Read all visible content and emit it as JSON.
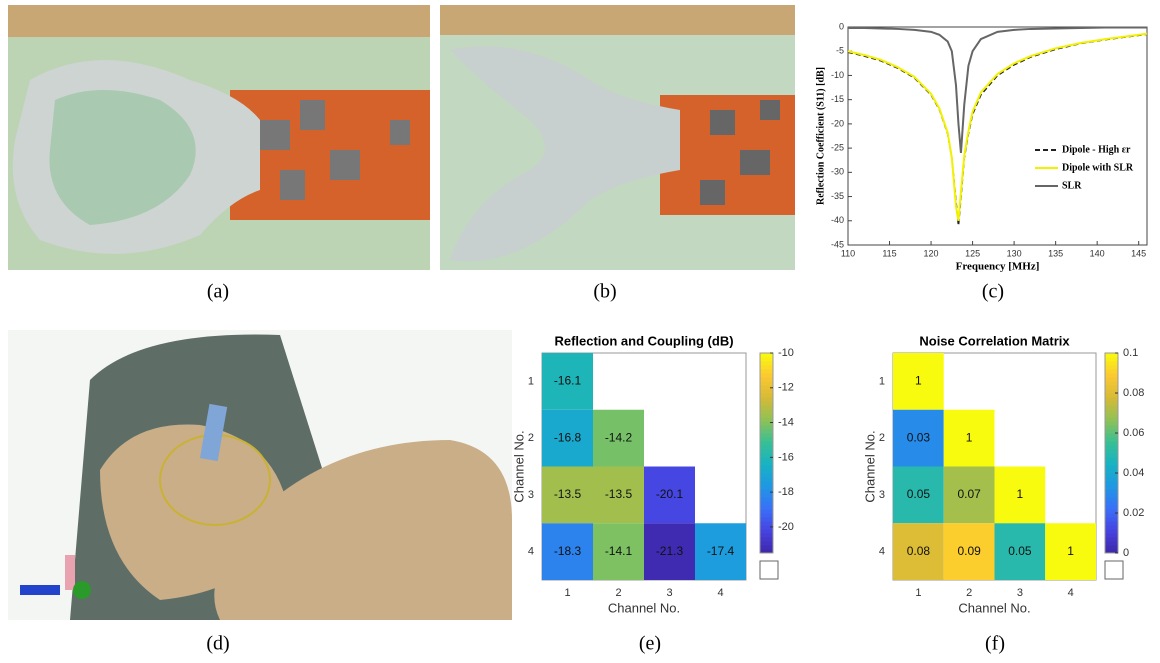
{
  "captions": [
    "(a)",
    "(b)",
    "(c)",
    "(d)",
    "(e)",
    "(f)"
  ],
  "chart_data": [
    {
      "type": "line",
      "xlabel": "Frequency [MHz]",
      "ylabel": "Reflection Coefficient (S11) [dB]",
      "x": [
        110,
        112,
        114,
        116,
        118,
        120,
        121,
        122,
        122.5,
        123,
        123.3,
        123.6,
        124,
        124.5,
        125,
        126,
        128,
        130,
        132,
        135,
        138,
        141,
        146
      ],
      "series": [
        {
          "name": "Dipole - High εr",
          "color": "#222222",
          "dash": true,
          "values": [
            -5.2,
            -6,
            -7,
            -8.5,
            -10.5,
            -14,
            -17,
            -22,
            -27,
            -36,
            -41,
            -35,
            -27,
            -22,
            -18,
            -14,
            -10,
            -7.8,
            -6.2,
            -4.6,
            -3.4,
            -2.6,
            -1.5
          ]
        },
        {
          "name": "Dipole with SLR",
          "color": "#f2f200",
          "dash": false,
          "values": [
            -5,
            -5.8,
            -6.8,
            -8.3,
            -10.3,
            -13.8,
            -16.8,
            -21.8,
            -27,
            -37,
            -40,
            -34,
            -26.5,
            -21.5,
            -17.5,
            -13.5,
            -9.7,
            -7.5,
            -6,
            -4.4,
            -3.3,
            -2.5,
            -1.4
          ]
        },
        {
          "name": "SLR",
          "color": "#666666",
          "dash": false,
          "values": [
            -0.2,
            -0.2,
            -0.3,
            -0.4,
            -0.6,
            -1,
            -1.6,
            -3,
            -5,
            -12,
            -20,
            -26,
            -16,
            -8,
            -5,
            -2.5,
            -1,
            -0.6,
            -0.4,
            -0.3,
            -0.2,
            -0.1,
            -0.1
          ]
        }
      ],
      "xlim": [
        110,
        146
      ],
      "xticks": [
        110,
        115,
        120,
        125,
        130,
        135,
        140,
        145
      ],
      "ylim": [
        -45,
        0
      ],
      "yticks": [
        0,
        -5,
        -10,
        -15,
        -20,
        -25,
        -30,
        -35,
        -40,
        -45
      ]
    },
    {
      "type": "heatmap",
      "title": "Reflection and Coupling (dB)",
      "xlabel": "Channel No.",
      "ylabel": "Channel No.",
      "xcategories": [
        "1",
        "2",
        "3",
        "4"
      ],
      "ycategories": [
        "1",
        "2",
        "3",
        "4"
      ],
      "colormap": "parula",
      "values": [
        [
          -16.1,
          null,
          null,
          null
        ],
        [
          -16.8,
          -14.2,
          null,
          null
        ],
        [
          -13.5,
          -13.5,
          -20.1,
          null
        ],
        [
          -18.3,
          -14.1,
          -21.3,
          -17.4
        ]
      ],
      "zlim": [
        -21.5,
        -10
      ],
      "zticks": [
        -20,
        -18,
        -16,
        -14,
        -12,
        -10
      ]
    },
    {
      "type": "heatmap",
      "title": "Noise Correlation Matrix",
      "xlabel": "Channel No.",
      "ylabel": "Channel No.",
      "xcategories": [
        "1",
        "2",
        "3",
        "4"
      ],
      "ycategories": [
        "1",
        "2",
        "3",
        "4"
      ],
      "colormap": "parula",
      "values": [
        [
          1,
          null,
          null,
          null
        ],
        [
          0.03,
          1,
          null,
          null
        ],
        [
          0.05,
          0.07,
          1,
          null
        ],
        [
          0.08,
          0.09,
          0.05,
          1
        ]
      ],
      "zlim": [
        0,
        0.1
      ],
      "zticks": [
        0,
        0.02,
        0.04,
        0.06,
        0.08,
        0.1
      ]
    }
  ]
}
